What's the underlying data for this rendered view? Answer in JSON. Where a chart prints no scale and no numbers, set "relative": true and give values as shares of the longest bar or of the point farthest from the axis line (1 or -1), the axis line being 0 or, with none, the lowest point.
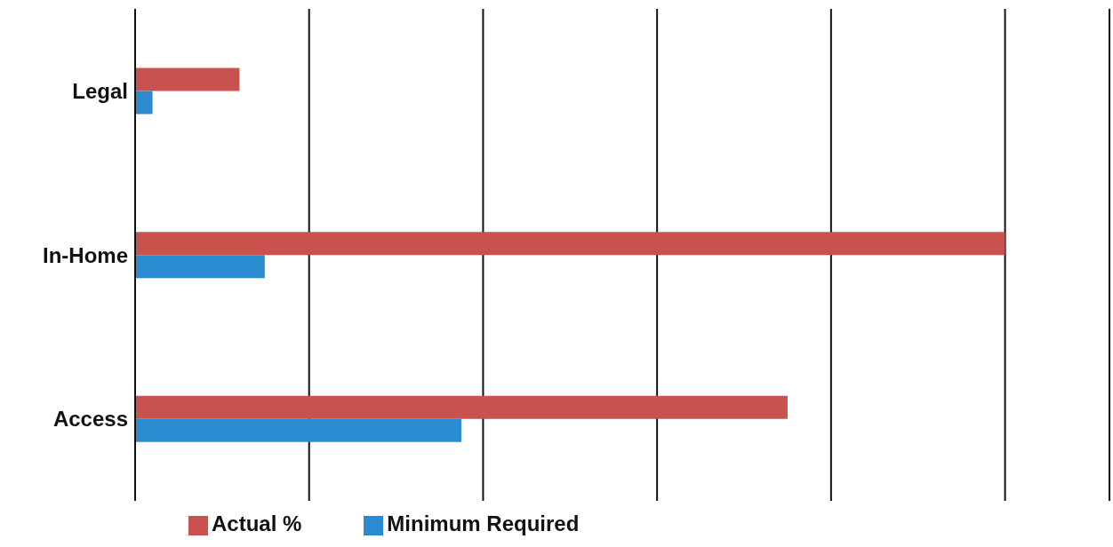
{
  "chart_data": {
    "type": "bar",
    "orientation": "horizontal",
    "relative": true,
    "categories": [
      "Legal",
      "In-Home",
      "Access"
    ],
    "series": [
      {
        "name": "Actual %",
        "color": "#c9524f",
        "values": [
          0.12,
          1,
          0.75
        ]
      },
      {
        "name": "Minimum Required",
        "color": "#2a8bd0",
        "values": [
          0.02,
          0.149,
          0.375
        ]
      }
    ],
    "grid": "x",
    "legend": "bottom left"
  }
}
